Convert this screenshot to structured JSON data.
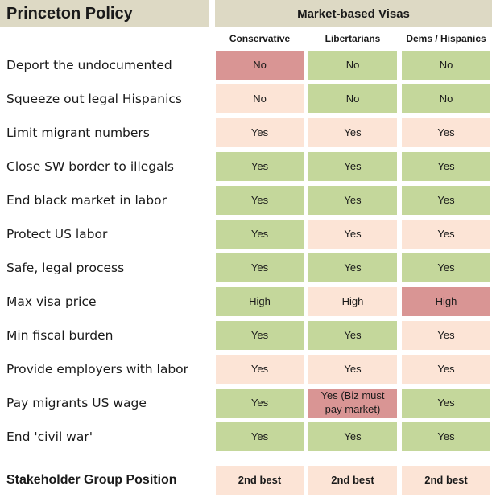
{
  "title": "Princeton Policy",
  "group_header": "Market-based Visas",
  "columns": [
    "Conservative",
    "Libertarians",
    "Dems / Hispanics"
  ],
  "colors": {
    "green": "#c4d79b",
    "peach": "#fce4d6",
    "red": "#d99594",
    "header_bg": "#ddd9c4"
  },
  "rows": [
    {
      "label": "Deport the undocumented",
      "cells": [
        {
          "text": "No",
          "color": "red"
        },
        {
          "text": "No",
          "color": "green"
        },
        {
          "text": "No",
          "color": "green"
        }
      ]
    },
    {
      "label": "Squeeze out legal Hispanics",
      "cells": [
        {
          "text": "No",
          "color": "peach"
        },
        {
          "text": "No",
          "color": "green"
        },
        {
          "text": "No",
          "color": "green"
        }
      ]
    },
    {
      "label": "Limit migrant numbers",
      "cells": [
        {
          "text": "Yes",
          "color": "peach"
        },
        {
          "text": "Yes",
          "color": "peach"
        },
        {
          "text": "Yes",
          "color": "peach"
        }
      ]
    },
    {
      "label": "Close SW border to illegals",
      "cells": [
        {
          "text": "Yes",
          "color": "green"
        },
        {
          "text": "Yes",
          "color": "green"
        },
        {
          "text": "Yes",
          "color": "green"
        }
      ]
    },
    {
      "label": "End black market in labor",
      "cells": [
        {
          "text": "Yes",
          "color": "green"
        },
        {
          "text": "Yes",
          "color": "green"
        },
        {
          "text": "Yes",
          "color": "green"
        }
      ]
    },
    {
      "label": "Protect US labor",
      "cells": [
        {
          "text": "Yes",
          "color": "green"
        },
        {
          "text": "Yes",
          "color": "peach"
        },
        {
          "text": "Yes",
          "color": "peach"
        }
      ]
    },
    {
      "label": "Safe, legal process",
      "cells": [
        {
          "text": "Yes",
          "color": "green"
        },
        {
          "text": "Yes",
          "color": "green"
        },
        {
          "text": "Yes",
          "color": "green"
        }
      ]
    },
    {
      "label": "Max visa price",
      "cells": [
        {
          "text": "High",
          "color": "green"
        },
        {
          "text": "High",
          "color": "peach"
        },
        {
          "text": "High",
          "color": "red"
        }
      ]
    },
    {
      "label": "Min fiscal burden",
      "cells": [
        {
          "text": "Yes",
          "color": "green"
        },
        {
          "text": "Yes",
          "color": "green"
        },
        {
          "text": "Yes",
          "color": "peach"
        }
      ]
    },
    {
      "label": "Provide employers with labor",
      "cells": [
        {
          "text": "Yes",
          "color": "peach"
        },
        {
          "text": "Yes",
          "color": "peach"
        },
        {
          "text": "Yes",
          "color": "peach"
        }
      ]
    },
    {
      "label": "Pay migrants US wage",
      "cells": [
        {
          "text": "Yes",
          "color": "green"
        },
        {
          "text": "Yes (Biz must pay market)",
          "color": "red"
        },
        {
          "text": "Yes",
          "color": "green"
        }
      ]
    },
    {
      "label": "End 'civil war'",
      "cells": [
        {
          "text": "Yes",
          "color": "green"
        },
        {
          "text": "Yes",
          "color": "green"
        },
        {
          "text": "Yes",
          "color": "green"
        }
      ]
    }
  ],
  "footer": {
    "label": "Stakeholder Group Position",
    "cells": [
      {
        "text": "2nd best",
        "color": "peach"
      },
      {
        "text": "2nd best",
        "color": "peach"
      },
      {
        "text": "2nd best",
        "color": "peach"
      }
    ]
  }
}
